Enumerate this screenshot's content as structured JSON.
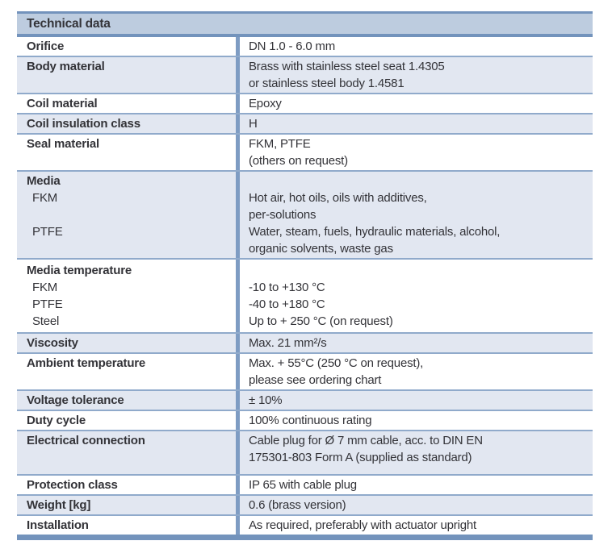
{
  "table": {
    "title": "Technical data",
    "colors": {
      "header_bg": "#bdccdf",
      "stripe_bg": "#e2e7f1",
      "line_major": "#7393bc",
      "line_minor": "#90aacb",
      "divider": "#7e9cc3",
      "text": "#333338"
    },
    "rows": [
      {
        "shade": false,
        "left": [
          {
            "t": "Orifice",
            "b": true
          }
        ],
        "right": [
          "DN 1.0 - 6.0 mm"
        ]
      },
      {
        "shade": true,
        "left": [
          {
            "t": "Body material",
            "b": true
          }
        ],
        "right": [
          "Brass with stainless steel seat 1.4305",
          "or stainless steel body 1.4581"
        ]
      },
      {
        "shade": false,
        "left": [
          {
            "t": "Coil material",
            "b": true
          }
        ],
        "right": [
          "Epoxy"
        ]
      },
      {
        "shade": true,
        "left": [
          {
            "t": "Coil insulation class",
            "b": true
          }
        ],
        "right": [
          "H"
        ]
      },
      {
        "shade": false,
        "left": [
          {
            "t": "Seal material",
            "b": true
          }
        ],
        "right": [
          "FKM, PTFE",
          "(others on request)"
        ]
      },
      {
        "shade": true,
        "left": [
          {
            "t": "Media",
            "b": true
          },
          {
            "t": "FKM",
            "ind": true
          },
          {
            "t": ""
          },
          {
            "t": "PTFE",
            "ind": true
          }
        ],
        "right": [
          "",
          "Hot air, hot oils, oils with additives,",
          "per-solutions",
          "Water, steam, fuels, hydraulic materials, alcohol,",
          "organic solvents, waste gas"
        ]
      },
      {
        "shade": false,
        "pt": 3,
        "pb": 3,
        "left": [
          {
            "t": "Media temperature",
            "b": true
          },
          {
            "t": "FKM",
            "ind": true
          },
          {
            "t": "PTFE",
            "ind": true
          },
          {
            "t": "Steel",
            "ind": true
          }
        ],
        "right": [
          "",
          "-10 to +130 °C",
          "-40 to +180 °C",
          "Up to + 250 °C (on request)"
        ]
      },
      {
        "shade": true,
        "left": [
          {
            "t": "Viscosity",
            "b": true
          }
        ],
        "right": [
          "Max. 21 mm²/s"
        ]
      },
      {
        "shade": false,
        "left": [
          {
            "t": "Ambient temperature",
            "b": true
          }
        ],
        "right": [
          "Max. + 55°C (250 °C on request),",
          "please see ordering chart"
        ]
      },
      {
        "shade": true,
        "left": [
          {
            "t": "Voltage tolerance",
            "b": true
          }
        ],
        "right": [
          "± 10%"
        ]
      },
      {
        "shade": false,
        "left": [
          {
            "t": "Duty cycle",
            "b": true
          }
        ],
        "right": [
          "100% continuous rating"
        ]
      },
      {
        "shade": true,
        "pb": 10,
        "left": [
          {
            "t": "Electrical connection",
            "b": true
          }
        ],
        "right": [
          "Cable plug for Ø 7 mm cable, acc. to DIN EN",
          "175301-803 Form A (supplied as standard)"
        ]
      },
      {
        "shade": false,
        "left": [
          {
            "t": "Protection class",
            "b": true
          }
        ],
        "right": [
          "IP 65 with cable plug"
        ]
      },
      {
        "shade": true,
        "left": [
          {
            "t": "Weight [kg]",
            "b": true
          }
        ],
        "right": [
          "0.6 (brass version)"
        ]
      },
      {
        "shade": false,
        "left": [
          {
            "t": "Installation",
            "b": true
          }
        ],
        "right": [
          "As required, preferably with actuator upright"
        ]
      }
    ]
  }
}
